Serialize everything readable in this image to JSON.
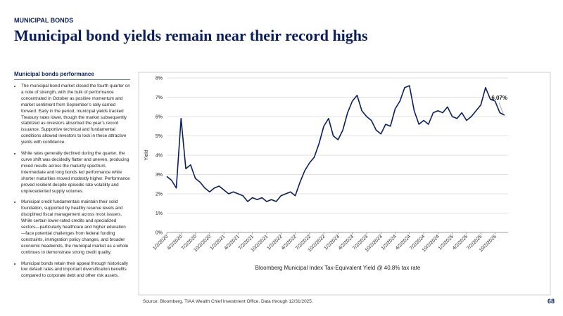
{
  "header": {
    "eyebrow": "MUNICIPAL BONDS",
    "title": "Municipal bond yields remain near their record highs",
    "page_number": "68"
  },
  "sidebar": {
    "heading": "Municipal bonds performance",
    "bullets": [
      "The municipal bond market closed the fourth quarter on a note of strength, with the bulk of performance concentrated in October as positive momentum and market sentiment from September’s rally carried forward. Early in the period, municipal yields tracked Treasury rates lower, though the market subsequently stabilized as investors absorbed the year’s record issuance. Supportive technical and fundamental conditions allowed investors to lock in these attractive yields with confidence.",
      "While rates generally declined during the quarter, the curve shift was decidedly flatter and uneven, producing mixed results across the maturity spectrum. Intermediate and long bonds led performance while shorter maturities moved modestly higher. Performance proved resilient despite episodic rate volatility and unprecedented supply volumes.",
      "Municipal credit fundamentals maintain their solid foundation, supported by healthy reserve levels and disciplined fiscal management across most issuers. While certain lower-rated credits and specialized sectors—particularly healthcare and higher education—face potential challenges from federal funding constraints, immigration policy changes, and broader economic headwinds, the municipal market as a whole continues to demonstrate strong credit quality.",
      "Municipal bonds retain their appeal through historically low default rates and important diversification benefits compared to corporate debt and other risk assets."
    ]
  },
  "source": "Source: Bloomberg, TIAA Wealth Chief Investment Office. Data through 12/31/2025.",
  "chart_data": {
    "type": "line",
    "x_label": "Bloomberg Municipal Index Tax-Equivalent Yield @ 40.8% tax rate",
    "y_label": "Yield",
    "x": [
      "1/2/2020",
      "2/2/2020",
      "3/2/2020",
      "4/2/2020",
      "5/2/2020",
      "6/2/2020",
      "7/2/2020",
      "8/2/2020",
      "9/2/2020",
      "10/2/2020",
      "11/2/2020",
      "12/2/2020",
      "1/2/2021",
      "2/2/2021",
      "3/2/2021",
      "4/2/2021",
      "5/2/2021",
      "6/2/2021",
      "7/2/2021",
      "8/2/2021",
      "9/2/2021",
      "10/2/2021",
      "11/2/2021",
      "12/2/2021",
      "1/2/2022",
      "2/2/2022",
      "3/2/2022",
      "4/2/2022",
      "5/2/2022",
      "6/2/2022",
      "7/2/2022",
      "8/2/2022",
      "9/2/2022",
      "10/2/2022",
      "11/2/2022",
      "12/2/2022",
      "1/2/2023",
      "2/2/2023",
      "3/2/2023",
      "4/2/2023",
      "5/2/2023",
      "6/2/2023",
      "7/2/2023",
      "8/2/2023",
      "9/2/2023",
      "10/2/2023",
      "11/2/2023",
      "12/2/2023",
      "1/2/2024",
      "2/2/2024",
      "3/2/2024",
      "4/2/2024",
      "5/2/2024",
      "6/2/2024",
      "7/2/2024",
      "8/2/2024",
      "9/2/2024",
      "10/2/2024",
      "11/2/2024",
      "12/2/2024",
      "1/2/2025",
      "2/2/2025",
      "3/2/2025",
      "4/2/2025",
      "5/2/2025",
      "6/2/2025",
      "7/2/2025",
      "8/2/2025",
      "9/2/2025",
      "10/2/2025",
      "11/2/2025",
      "12/2/2025"
    ],
    "xticks": [
      "1/2/2020",
      "4/2/2020",
      "7/2/2020",
      "10/2/2020",
      "1/2/2021",
      "4/2/2021",
      "7/2/2021",
      "10/2/2021",
      "1/2/2022",
      "4/2/2022",
      "7/2/2022",
      "10/2/2022",
      "1/2/2023",
      "4/2/2023",
      "7/2/2023",
      "10/2/2023",
      "1/2/2024",
      "4/2/2024",
      "7/2/2024",
      "10/2/2024",
      "1/2/2025",
      "4/2/2025",
      "7/2/2025",
      "10/2/2025"
    ],
    "series": [
      {
        "name": "Yield",
        "color": "#0a1f5c",
        "values": [
          2.9,
          2.7,
          2.3,
          5.9,
          3.3,
          3.5,
          2.8,
          2.6,
          2.3,
          2.1,
          2.3,
          2.4,
          2.2,
          2.0,
          2.1,
          2.0,
          1.9,
          1.6,
          1.8,
          1.7,
          1.8,
          1.6,
          1.7,
          1.6,
          1.9,
          2.0,
          2.1,
          1.9,
          2.6,
          3.2,
          3.6,
          3.9,
          4.6,
          5.5,
          5.9,
          5.0,
          4.8,
          5.3,
          6.2,
          6.8,
          7.1,
          6.3,
          6.0,
          5.8,
          5.3,
          5.1,
          5.6,
          5.5,
          6.4,
          6.8,
          7.5,
          7.6,
          6.3,
          5.6,
          5.8,
          5.6,
          6.2,
          6.3,
          6.2,
          6.5,
          6.0,
          5.9,
          6.2,
          5.8,
          6.0,
          6.3,
          6.6,
          7.5,
          6.9,
          6.8,
          6.2,
          6.07
        ],
        "end_label": "6.07%"
      }
    ],
    "ylim": [
      0,
      8
    ],
    "yticks": [
      {
        "value": 0,
        "label": "0%"
      },
      {
        "value": 1,
        "label": "1%"
      },
      {
        "value": 2,
        "label": "2%"
      },
      {
        "value": 3,
        "label": "3%"
      },
      {
        "value": 4,
        "label": "4%"
      },
      {
        "value": 5,
        "label": "5%"
      },
      {
        "value": 6,
        "label": "6%"
      },
      {
        "value": 7,
        "label": "7%"
      },
      {
        "value": 8,
        "label": "8%"
      }
    ],
    "grid": true
  }
}
